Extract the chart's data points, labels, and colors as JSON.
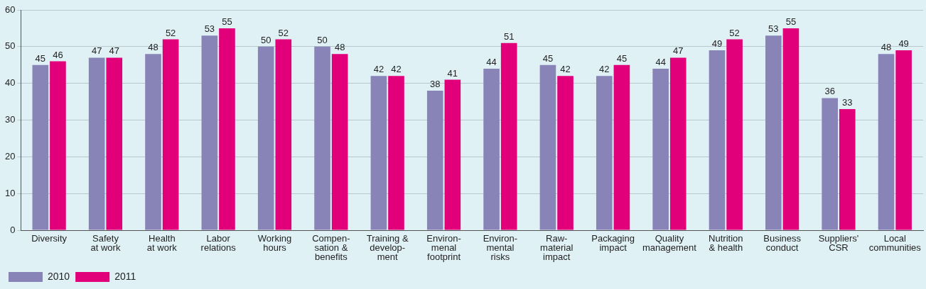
{
  "chart_data": {
    "type": "bar",
    "categories": [
      "Diversity",
      "Safety\nat work",
      "Health\nat work",
      "Labor\nrelations",
      "Working\nhours",
      "Compen-\nsation &\nbenefits",
      "Training &\ndevelop-\nment",
      "Environ-\nmenal\nfootprint",
      "Environ-\nmental\nrisks",
      "Raw-\nmaterial\nimpact",
      "Packaging\nimpact",
      "Quality\nmanagement",
      "Nutrition\n& health",
      "Business\nconduct",
      "Suppliers'\nCSR",
      "Local\ncommunities"
    ],
    "series": [
      {
        "name": "2010",
        "color": "#8984b8",
        "values": [
          45,
          47,
          48,
          53,
          50,
          50,
          42,
          38,
          44,
          45,
          42,
          44,
          49,
          53,
          36,
          48
        ]
      },
      {
        "name": "2011",
        "color": "#e2007a",
        "values": [
          46,
          47,
          52,
          55,
          52,
          48,
          42,
          41,
          51,
          42,
          45,
          47,
          52,
          55,
          33,
          49
        ]
      }
    ],
    "ylim": [
      0,
      60
    ],
    "yticks": [
      0,
      10,
      20,
      30,
      40,
      50,
      60
    ],
    "grid": "y",
    "legend": "bottom left",
    "data_labels": true
  }
}
